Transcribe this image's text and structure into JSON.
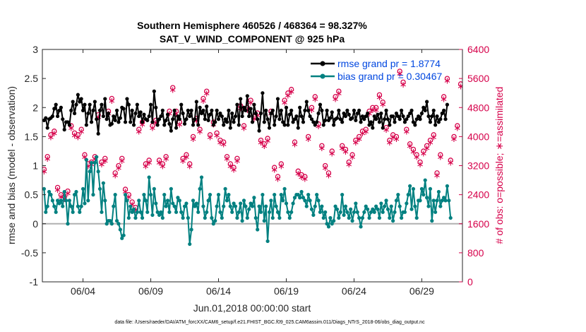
{
  "chart_data": {
    "type": "line",
    "title": "Southern Hemisphere 460526 / 468364 = 98.327%",
    "subtitle": "SAT_V_WIND_COMPONENT @ 925 hPa",
    "xlabel": "Jun.01,2018 00:00:00 start",
    "ylabel": "rmse and bias (model - observation)",
    "ylabel_right": "# of obs: o=possible; ∗=assimilated",
    "xlim": [
      1,
      32
    ],
    "ylim": [
      -1,
      3
    ],
    "ylim_right": [
      0,
      6400
    ],
    "x_ticks": [
      {
        "value": 4,
        "label": "06/04"
      },
      {
        "value": 9,
        "label": "06/09"
      },
      {
        "value": 14,
        "label": "06/14"
      },
      {
        "value": 19,
        "label": "06/19"
      },
      {
        "value": 24,
        "label": "06/24"
      },
      {
        "value": 29,
        "label": "06/29"
      }
    ],
    "y_ticks": [
      "-1",
      "-0.5",
      "0",
      "0.5",
      "1",
      "1.5",
      "2",
      "2.5",
      "3"
    ],
    "y_ticks_right": [
      "0",
      "800",
      "1600",
      "2400",
      "3200",
      "4000",
      "4800",
      "5600",
      "6400"
    ],
    "grid": false,
    "legend_position": "top-right",
    "colors": {
      "rmse": "#000000",
      "bias": "#008080",
      "obs": "#d6004a",
      "zero_line": "#b0b0b0"
    },
    "series": [
      {
        "name": "rmse grand pr = 1.8774",
        "axis": "left",
        "x_start": 1.125,
        "x_step": 0.125,
        "values": [
          1.78,
          1.82,
          1.65,
          1.8,
          1.82,
          1.85,
          1.98,
          2.05,
          1.85,
          1.95,
          2.0,
          1.8,
          1.62,
          1.75,
          1.75,
          1.7,
          1.95,
          2.1,
          1.9,
          2.05,
          2.22,
          2.1,
          2.15,
          1.95,
          2.05,
          1.7,
          1.9,
          2.05,
          1.75,
          1.95,
          2.1,
          1.8,
          1.55,
          1.95,
          2.05,
          1.85,
          2.15,
          1.8,
          1.9,
          1.7,
          1.72,
          1.85,
          1.78,
          1.95,
          1.75,
          1.82,
          2.0,
          1.98,
          1.75,
          2.15,
          2.05,
          1.75,
          1.95,
          1.7,
          1.9,
          2.05,
          1.85,
          1.92,
          1.75,
          1.88,
          1.8,
          1.78,
          1.85,
          2.05,
          1.75,
          2.28,
          2.0,
          1.7,
          1.8,
          1.85,
          1.95,
          1.7,
          1.78,
          1.88,
          1.72,
          1.6,
          1.8,
          1.95,
          1.65,
          1.85,
          1.8,
          2.05,
          1.9,
          1.72,
          1.8,
          1.95,
          1.85,
          1.95,
          1.7,
          1.8,
          2.1,
          1.7,
          2.0,
          1.9,
          1.95,
          1.8,
          2.02,
          1.78,
          1.88,
          1.95,
          1.7,
          1.75,
          1.95,
          1.8,
          1.9,
          1.85,
          1.7,
          1.8,
          1.75,
          1.95,
          1.65,
          1.9,
          1.75,
          1.85,
          2.05,
          1.7,
          2.15,
          1.85,
          2.0,
          1.95,
          2.2,
          1.85,
          1.98,
          1.75,
          2.05,
          1.9,
          1.8,
          1.6,
          1.9,
          2.25,
          1.75,
          1.95,
          1.8,
          1.65,
          1.9,
          1.95,
          1.7,
          1.85,
          2.15,
          1.8,
          1.95,
          1.75,
          1.7,
          2.0,
          1.7,
          1.88,
          1.95,
          1.75,
          1.8,
          1.85,
          1.65,
          2.0,
          1.85,
          1.75,
          1.95,
          2.1,
          1.95,
          1.85,
          1.8,
          1.75,
          1.7,
          1.75,
          1.9,
          2.05,
          1.95,
          1.7,
          1.78,
          1.95,
          1.78,
          1.82,
          1.92,
          1.7,
          1.8,
          1.82,
          1.95,
          1.8,
          1.75,
          1.9,
          1.85,
          1.95,
          1.88,
          1.8,
          1.82,
          1.95,
          1.78,
          1.9,
          1.95,
          1.75,
          1.85,
          1.8,
          1.85,
          1.9,
          1.7,
          1.75,
          1.65,
          1.85,
          1.8,
          1.88,
          1.75,
          1.9,
          1.65,
          1.8,
          1.95,
          1.8,
          1.7,
          1.85,
          1.85,
          1.75,
          1.9,
          1.85,
          1.8,
          1.95,
          1.85,
          1.75,
          1.8,
          1.85,
          1.9,
          1.95,
          1.75,
          1.7,
          1.8,
          1.85,
          1.8,
          1.9,
          2.0,
          1.95,
          2.1,
          1.85,
          1.75,
          1.85,
          1.95,
          1.7,
          1.85,
          1.75,
          1.8,
          1.9,
          1.95,
          1.8,
          2.05
        ]
      },
      {
        "name": "bias grand pr = 0.30467",
        "axis": "left",
        "x_start": 1.125,
        "x_step": 0.125,
        "values": [
          0.6,
          0.2,
          0.3,
          0.55,
          0.5,
          0.4,
          0.3,
          0.2,
          0.4,
          0.35,
          0.4,
          0.3,
          0.55,
          0.4,
          0.0,
          0.4,
          0.3,
          0.2,
          0.5,
          0.55,
          0.3,
          0.2,
          0.3,
          0.6,
          0.35,
          1.1,
          0.4,
          0.9,
          1.05,
          0.5,
          1.05,
          1.15,
          0.9,
          0.6,
          0.2,
          0.7,
          0.4,
          0.0,
          0.05,
          0.05,
          0.0,
          0.3,
          0.5,
          0.05,
          0.0,
          -0.1,
          -0.25,
          -0.2,
          0.5,
          0.4,
          0.1,
          0.3,
          0.2,
          0.25,
          0.1,
          0.2,
          0.4,
          0.2,
          0.1,
          0.5,
          0.4,
          0.2,
          0.8,
          0.5,
          0.15,
          0.6,
          0.35,
          0.2,
          0.15,
          0.2,
          0.1,
          0.5,
          0.3,
          0.4,
          0.2,
          0.6,
          0.35,
          0.3,
          0.2,
          0.45,
          0.4,
          0.2,
          0.1,
          0.3,
          0.35,
          0.1,
          -0.35,
          -0.1,
          0.4,
          0.3,
          0.35,
          0.2,
          0.6,
          0.8,
          0.3,
          0.1,
          0.2,
          0.4,
          0.5,
          0.1,
          0.0,
          0.05,
          0.3,
          0.5,
          0.2,
          0.1,
          0.3,
          0.6,
          0.4,
          0.5,
          0.3,
          0.2,
          0.35,
          0.3,
          0.1,
          0.2,
          0.35,
          0.05,
          0.4,
          0.3,
          0.1,
          0.25,
          0.35,
          0.3,
          0.45,
          0.1,
          -0.1,
          0.3,
          0.2,
          0.5,
          0.05,
          0.3,
          -0.3,
          0.2,
          0.4,
          0.1,
          0.5,
          0.3,
          0.2,
          0.1,
          0.5,
          0.4,
          0.6,
          0.35,
          0.2,
          0.1,
          0.2,
          0.35,
          0.45,
          0.5,
          0.5,
          0.45,
          0.55,
          0.45,
          0.4,
          0.3,
          0.5,
          0.4,
          0.25,
          0.15,
          0.3,
          0.5,
          0.4,
          0.2,
          0.3,
          0.1,
          0.2,
          0.0,
          -0.05,
          0.1,
          0.0,
          0.05,
          0.3,
          0.25,
          0.1,
          0.2,
          0.5,
          0.15,
          0.3,
          0.2,
          0.1,
          0.25,
          0.05,
          0.2,
          0.35,
          0.2,
          0.1,
          -0.05,
          0.1,
          0.2,
          0.3,
          0.25,
          0.1,
          0.2,
          0.25,
          0.2,
          0.3,
          0.25,
          0.1,
          0.35,
          0.2,
          0.3,
          0.4,
          0.25,
          0.1,
          0.3,
          0.05,
          0.2,
          0.4,
          0.5,
          0.3,
          0.1,
          0.2,
          0.2,
          0.35,
          0.5,
          0.65,
          0.25,
          0.6,
          0.3,
          0.1,
          0.4,
          0.4,
          0.6,
          0.5,
          0.75,
          0.45,
          0.3,
          0.6,
          0.05,
          0.4,
          0.2,
          0.4,
          0.55,
          0.3,
          0.4,
          0.45,
          0.4,
          0.65,
          0.4,
          0.1
        ]
      },
      {
        "name": "possible",
        "axis": "right",
        "marker": "o",
        "x_start": 1.125,
        "x_step": 0.25,
        "values": [
          3100,
          3450,
          4050,
          4150,
          2600,
          2400,
          2350,
          2500,
          4300,
          4100,
          4050,
          4200,
          3500,
          3250,
          3300,
          3450,
          4600,
          3300,
          3400,
          4700,
          5050,
          3000,
          3200,
          3400,
          2550,
          2400,
          2200,
          2050,
          4200,
          4400,
          3250,
          3350,
          4300,
          4450,
          3350,
          3250,
          3450,
          4700,
          5350,
          4700,
          4400,
          3400,
          3500,
          3250,
          4000,
          4500,
          4200,
          5050,
          5250,
          4050,
          4400,
          4100,
          3900,
          3850,
          3450,
          3250,
          3150,
          3400,
          4850,
          4300,
          4800,
          5000,
          4550,
          4650,
          3900,
          3800,
          3950,
          4700,
          3150,
          2900,
          3250,
          5000,
          5200,
          5300,
          3850,
          3050,
          2950,
          2900,
          4000,
          4800,
          5100,
          4350,
          3750,
          3200,
          3000,
          3600,
          5100,
          5250,
          3750,
          3650,
          3300,
          3500,
          3900,
          4000,
          4150,
          4200,
          4700,
          4800,
          4800,
          5150,
          4950,
          4250,
          3900,
          4050,
          4000,
          5800,
          5500,
          4200,
          3800,
          3650,
          3500,
          3300,
          3600,
          3750,
          3900,
          4050,
          3000,
          3500,
          5100,
          5600,
          3350,
          4000,
          4300,
          5450
        ]
      },
      {
        "name": "assimilated",
        "axis": "right",
        "marker": "*",
        "x_start": 1.125,
        "x_step": 0.25,
        "values": [
          3050,
          3400,
          4000,
          4100,
          2550,
          2350,
          2300,
          2450,
          4250,
          4050,
          4000,
          4150,
          3450,
          3200,
          3250,
          3400,
          4550,
          3250,
          3350,
          4650,
          5000,
          2950,
          3150,
          3350,
          2500,
          2350,
          2150,
          2000,
          4150,
          4350,
          3200,
          3300,
          4250,
          4400,
          3300,
          3200,
          3400,
          4650,
          5300,
          4650,
          4350,
          3350,
          3450,
          3200,
          3950,
          4450,
          4150,
          5000,
          5200,
          4000,
          4350,
          4050,
          3850,
          3800,
          3400,
          3200,
          3100,
          3350,
          4800,
          4250,
          4750,
          4950,
          4500,
          4600,
          3850,
          3750,
          3900,
          4650,
          3100,
          2850,
          3200,
          4950,
          5150,
          5250,
          3800,
          3000,
          2900,
          2850,
          3950,
          4750,
          5050,
          4300,
          3700,
          3150,
          2950,
          3550,
          5050,
          5200,
          3700,
          3600,
          3250,
          3450,
          3850,
          3950,
          4100,
          4150,
          4650,
          4750,
          4750,
          5100,
          4900,
          4200,
          3850,
          4000,
          3950,
          5750,
          5450,
          4150,
          3750,
          3600,
          3450,
          3250,
          3550,
          3700,
          3850,
          4000,
          2950,
          3450,
          5050,
          5550,
          3300,
          3950,
          4250,
          5400
        ]
      }
    ],
    "footnote": "data file: /Users/raeder/DAI/ATM_forcXX/CAM6_setup/f.e21.FHIST_BGC.f09_025.CAM6assim.011/Diags_NTrS_2018-06/obs_diag_output.nc"
  }
}
